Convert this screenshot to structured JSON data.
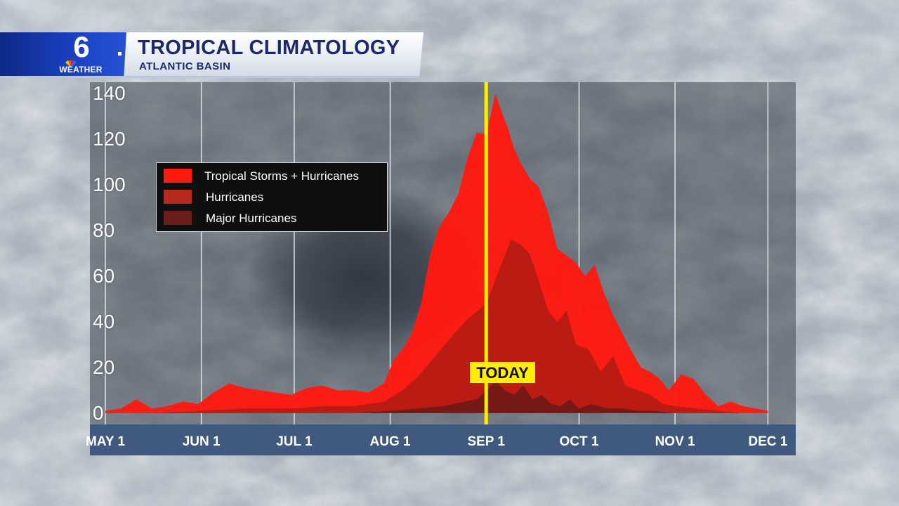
{
  "header": {
    "logo_number": "6",
    "logo_text": "WEATHER",
    "title": "TROPICAL CLIMATOLOGY",
    "subtitle": "ATLANTIC BASIN"
  },
  "colors": {
    "tropical": "#ff1a10",
    "hurricanes": "#b31c14",
    "major": "#6e1a18",
    "today_line": "#ffee00",
    "axis_bar": "#3f5a7e",
    "plot_bg": "#4a4f57"
  },
  "chart_data": {
    "type": "area",
    "title": "TROPICAL CLIMATOLOGY",
    "subtitle": "ATLANTIC BASIN",
    "xlabel": "",
    "ylabel": "",
    "ylim": [
      -5,
      145
    ],
    "yticks": [
      0,
      20,
      40,
      60,
      80,
      100,
      120,
      140
    ],
    "ytick_labels": [
      "0",
      "20",
      "40",
      "60",
      "80",
      "100",
      "120",
      "140"
    ],
    "xlim": [
      "2000-04-26",
      "2000-12-10"
    ],
    "xtick_dates": [
      "2000-05-01",
      "2000-06-01",
      "2000-07-01",
      "2000-08-01",
      "2000-09-01",
      "2000-10-01",
      "2000-11-01",
      "2000-12-01"
    ],
    "xtick_labels": [
      "MAY 1",
      "JUN 1",
      "JUL 1",
      "AUG 1",
      "SEP 1",
      "OCT 1",
      "NOV 1",
      "DEC 1"
    ],
    "grid": true,
    "legend_position": "upper-left",
    "today": {
      "date": "2000-09-01",
      "label": "TODAY"
    },
    "series": [
      {
        "name": "Tropical Storms + Hurricanes",
        "x": [
          "2000-05-01",
          "2000-05-06",
          "2000-05-11",
          "2000-05-16",
          "2000-05-21",
          "2000-05-26",
          "2000-05-31",
          "2000-06-05",
          "2000-06-10",
          "2000-06-15",
          "2000-06-20",
          "2000-06-25",
          "2000-06-30",
          "2000-07-05",
          "2000-07-10",
          "2000-07-15",
          "2000-07-20",
          "2000-07-25",
          "2000-07-30",
          "2000-08-02",
          "2000-08-05",
          "2000-08-08",
          "2000-08-11",
          "2000-08-14",
          "2000-08-17",
          "2000-08-20",
          "2000-08-23",
          "2000-08-26",
          "2000-08-29",
          "2000-09-01",
          "2000-09-04",
          "2000-09-06",
          "2000-09-08",
          "2000-09-10",
          "2000-09-12",
          "2000-09-15",
          "2000-09-18",
          "2000-09-21",
          "2000-09-24",
          "2000-09-27",
          "2000-09-30",
          "2000-10-03",
          "2000-10-06",
          "2000-10-09",
          "2000-10-12",
          "2000-10-15",
          "2000-10-18",
          "2000-10-21",
          "2000-10-24",
          "2000-10-27",
          "2000-10-30",
          "2000-11-03",
          "2000-11-07",
          "2000-11-11",
          "2000-11-15",
          "2000-11-19",
          "2000-11-23",
          "2000-11-27",
          "2000-12-01"
        ],
        "values": [
          1,
          2,
          6,
          2,
          3,
          5,
          4,
          9,
          13,
          11,
          10,
          9,
          8,
          11,
          12,
          10,
          10,
          9,
          13,
          23,
          28,
          35,
          48,
          70,
          82,
          88,
          96,
          112,
          123,
          122,
          140,
          132,
          125,
          116,
          110,
          103,
          99,
          88,
          72,
          69,
          66,
          60,
          65,
          53,
          43,
          35,
          27,
          20,
          18,
          15,
          10,
          17,
          15,
          8,
          3,
          5,
          3,
          2,
          1
        ]
      },
      {
        "name": "Hurricanes",
        "x": [
          "2000-05-01",
          "2000-05-15",
          "2000-06-01",
          "2000-06-15",
          "2000-07-01",
          "2000-07-10",
          "2000-07-20",
          "2000-07-30",
          "2000-08-05",
          "2000-08-10",
          "2000-08-15",
          "2000-08-20",
          "2000-08-25",
          "2000-09-01",
          "2000-09-05",
          "2000-09-09",
          "2000-09-12",
          "2000-09-15",
          "2000-09-18",
          "2000-09-21",
          "2000-09-24",
          "2000-09-27",
          "2000-09-30",
          "2000-10-04",
          "2000-10-08",
          "2000-10-12",
          "2000-10-16",
          "2000-10-20",
          "2000-10-24",
          "2000-10-28",
          "2000-11-01",
          "2000-11-08",
          "2000-11-15",
          "2000-11-22",
          "2000-12-01"
        ],
        "values": [
          0,
          0,
          1,
          2,
          2,
          3,
          3,
          5,
          10,
          16,
          24,
          32,
          40,
          48,
          62,
          76,
          74,
          70,
          58,
          45,
          40,
          45,
          30,
          28,
          18,
          25,
          12,
          10,
          8,
          4,
          3,
          2,
          1,
          0,
          0
        ]
      },
      {
        "name": "Major Hurricanes",
        "x": [
          "2000-05-01",
          "2000-06-01",
          "2000-07-01",
          "2000-07-20",
          "2000-08-01",
          "2000-08-10",
          "2000-08-18",
          "2000-08-25",
          "2000-08-29",
          "2000-09-01",
          "2000-09-04",
          "2000-09-07",
          "2000-09-10",
          "2000-09-13",
          "2000-09-16",
          "2000-09-19",
          "2000-09-22",
          "2000-09-25",
          "2000-09-28",
          "2000-10-01",
          "2000-10-05",
          "2000-10-10",
          "2000-10-15",
          "2000-10-20",
          "2000-10-25",
          "2000-11-01",
          "2000-11-10",
          "2000-12-01"
        ],
        "values": [
          0,
          0,
          0,
          0,
          1,
          2,
          3,
          5,
          6,
          10,
          14,
          10,
          8,
          12,
          6,
          8,
          4,
          3,
          6,
          2,
          4,
          2,
          2,
          1,
          1,
          0,
          0,
          0
        ]
      }
    ]
  }
}
